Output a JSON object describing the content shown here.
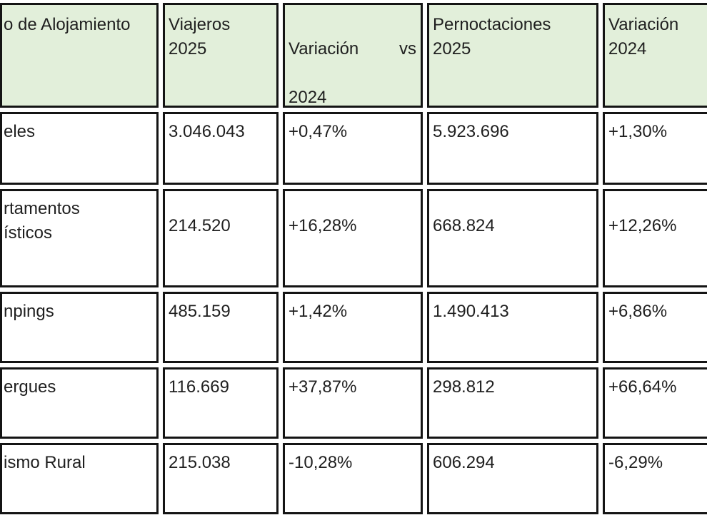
{
  "chart_data": {
    "type": "table",
    "title": "",
    "columns": [
      "o de Alojamiento",
      "Viajeros 2025",
      "Variación vs 2024",
      "Pernoctaciones 2025",
      "Variación 2024"
    ],
    "rows": [
      [
        "eles",
        "3.046.043",
        "+0,47%",
        "5.923.696",
        "+1,30%"
      ],
      [
        "rtamentos ísticos",
        "214.520",
        "+16,28%",
        "668.824",
        "+12,26%"
      ],
      [
        "npings",
        "485.159",
        "+1,42%",
        "1.490.413",
        "+6,86%"
      ],
      [
        "ergues",
        "116.669",
        "+37,87%",
        "298.812",
        "+66,64%"
      ],
      [
        "ismo Rural",
        "215.038",
        "-10,28%",
        "606.294",
        "-6,29%"
      ]
    ],
    "layout": {
      "header_background": "#e2efda",
      "border_color": "#141414",
      "left_column_clipped": true,
      "right_column_clipped": true
    }
  },
  "display": {
    "header": {
      "c1": "o de Alojamiento",
      "c2": "Viajeros\n2025",
      "c3a": "Variación",
      "c3b": "vs",
      "c3c": "2024",
      "c4": "Pernoctaciones\n2025",
      "c5": "Variación\n2024"
    },
    "rows": [
      {
        "c1": "eles",
        "c2": "3.046.043",
        "c3": "+0,47%",
        "c4": "5.923.696",
        "c5": "+1,30%"
      },
      {
        "c1": "rtamentos\nísticos",
        "c2": "214.520",
        "c3": "+16,28%",
        "c4": "668.824",
        "c5": "+12,26%"
      },
      {
        "c1": "npings",
        "c2": "485.159",
        "c3": "+1,42%",
        "c4": "1.490.413",
        "c5": "+6,86%"
      },
      {
        "c1": "ergues",
        "c2": "116.669",
        "c3": "+37,87%",
        "c4": "298.812",
        "c5": "+66,64%"
      },
      {
        "c1": "ismo Rural",
        "c2": "215.038",
        "c3": "-10,28%",
        "c4": "606.294",
        "c5": "-6,29%"
      }
    ]
  }
}
